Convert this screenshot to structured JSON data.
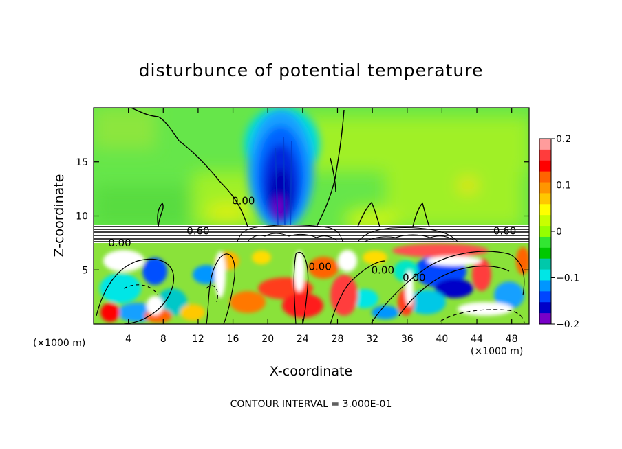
{
  "chart_data": {
    "type": "heatmap",
    "title": "disturbunce of potential temperature",
    "xlabel": "X-coordinate",
    "ylabel": "Z-coordinate",
    "x_unit_left": "(×1000 m)",
    "x_unit_right": "(×1000 m)",
    "footer": "CONTOUR INTERVAL = 3.000E-01",
    "xlim": [
      0,
      50
    ],
    "ylim": [
      0,
      20
    ],
    "xticks": [
      4,
      8,
      12,
      16,
      20,
      24,
      28,
      32,
      36,
      40,
      44,
      48
    ],
    "xtick_labels": [
      "4",
      "8",
      "12",
      "16",
      "20",
      "24",
      "28",
      "32",
      "36",
      "40",
      "44",
      "48"
    ],
    "yticks": [
      5,
      10,
      15
    ],
    "ytick_labels": [
      "5",
      "10",
      "15"
    ],
    "colorbar": {
      "range": [
        -0.2,
        0.2
      ],
      "tick_values": [
        0.2,
        0.1,
        0,
        -0.1,
        -0.2
      ],
      "tick_labels": [
        "0.2",
        "0.1",
        "0",
        "−0.1",
        "−0.2"
      ],
      "colors": [
        "#ff9c9c",
        "#ff3c3c",
        "#ff0000",
        "#ff6400",
        "#ff9600",
        "#ffc800",
        "#ffff00",
        "#c8ff00",
        "#96ff00",
        "#32e632",
        "#00c800",
        "#00c8aa",
        "#00e6e6",
        "#0096ff",
        "#0046ff",
        "#0000c8",
        "#7800c8"
      ]
    },
    "contour_labels": [
      {
        "text": "0.60",
        "x": 12.0,
        "z": 8.6
      },
      {
        "text": "0.60",
        "x": 47.2,
        "z": 8.6
      },
      {
        "text": "0.00",
        "x": 17.2,
        "z": 11.4
      },
      {
        "text": "0.00",
        "x": 3.0,
        "z": 7.5
      },
      {
        "text": "0.00",
        "x": 26.0,
        "z": 5.3
      },
      {
        "text": "0.00",
        "x": 33.2,
        "z": 5.0
      },
      {
        "text": "0.00",
        "x": 36.8,
        "z": 4.3
      }
    ]
  }
}
